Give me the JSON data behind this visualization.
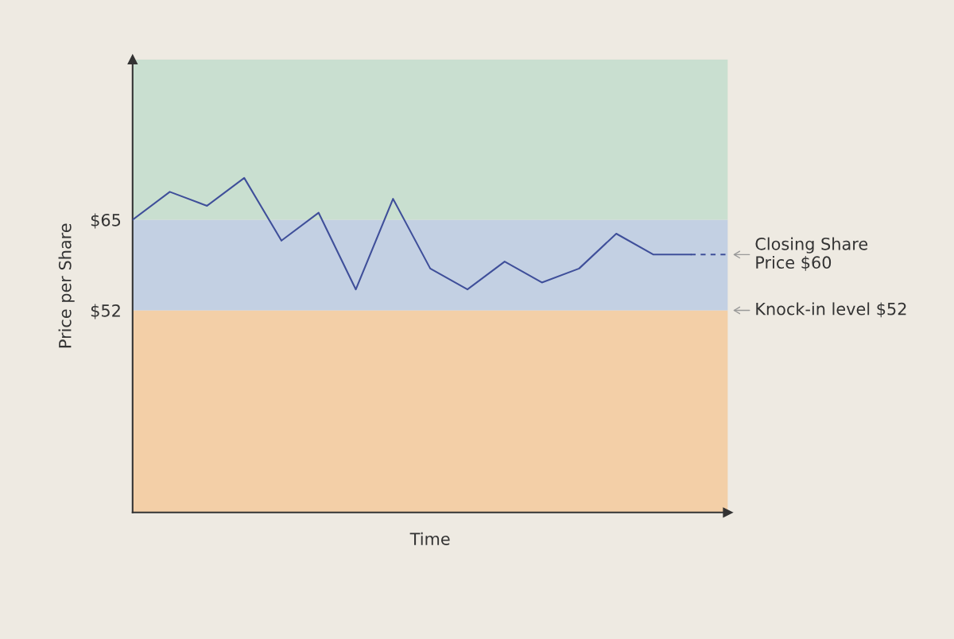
{
  "chart_data": {
    "type": "line",
    "xlabel": "Time",
    "ylabel": "Price per Share",
    "categories": [
      null,
      null,
      null,
      null,
      null,
      null,
      null,
      null,
      null,
      null,
      null,
      null,
      null,
      null,
      null,
      null,
      null
    ],
    "series": [
      {
        "color": "#3f4f9a",
        "line_style": "solid",
        "values": [
          65,
          69,
          67,
          71,
          62,
          66,
          55,
          68,
          58,
          55,
          59,
          56,
          58,
          63,
          60,
          60,
          null
        ]
      },
      {
        "color": "#3f4f9a",
        "line_style": "dashed",
        "values": [
          null,
          null,
          null,
          null,
          null,
          null,
          null,
          null,
          null,
          null,
          null,
          null,
          null,
          null,
          null,
          60,
          60
        ]
      }
    ],
    "ylim": [
      23,
      88
    ],
    "yticks": [
      {
        "value": 52,
        "label": "$52"
      },
      {
        "value": 65,
        "label": "$65"
      }
    ],
    "tick_labels": "y",
    "grid": false,
    "legend": false,
    "marker": "none",
    "bands": [
      {
        "axis": "y",
        "from": 23,
        "to": 52,
        "color": "#f3cfa7",
        "label": null
      },
      {
        "axis": "y",
        "from": 52,
        "to": 65,
        "color": "#c3d0e3",
        "label": null
      },
      {
        "axis": "y",
        "from": 65,
        "to": 88,
        "color": "#c9dfd0",
        "label": null
      }
    ],
    "annotations": [
      "Closing Share\nPrice $60",
      "Knock-in level $52"
    ]
  }
}
